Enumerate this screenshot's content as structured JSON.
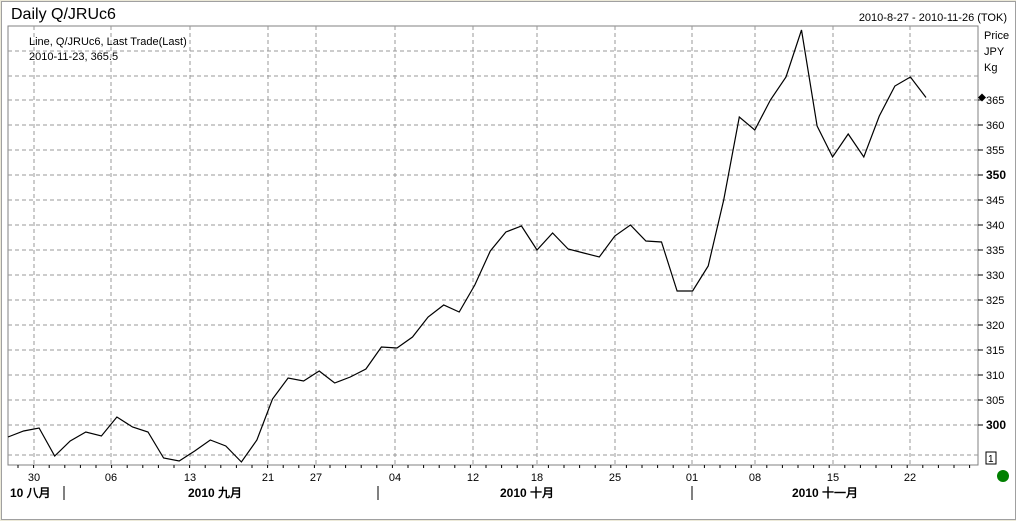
{
  "header": {
    "title": "Daily Q/JRUc6",
    "range": "2010-8-27 - 2010-11-26 (TOK)"
  },
  "legend": {
    "line1": "Line, Q/JRUc6, Last Trade(Last)",
    "line2": "2010-11-23, 365.5"
  },
  "axis_units": [
    "Price",
    "JPY",
    "Kg"
  ],
  "pane_index": "1",
  "status_color": "#008000",
  "chart_data": {
    "type": "line",
    "series": [
      {
        "values": [
          297.6,
          298.8,
          299.4,
          293.8,
          296.8,
          298.6,
          297.8,
          301.6,
          299.6,
          298.6,
          293.4,
          292.8,
          294.8,
          297,
          295.8,
          292.6,
          297,
          305.2,
          309.4,
          308.8,
          310.8,
          308.4,
          309.6,
          311.2,
          315.6,
          315.4,
          317.6,
          321.6,
          324,
          322.6,
          328,
          334.8,
          338.6,
          339.8,
          335,
          338.4,
          335.2,
          334.4,
          333.6,
          337.8,
          340,
          336.8,
          336.6,
          326.8,
          326.8,
          331.8,
          345,
          361.6,
          359,
          365,
          369.6,
          379,
          359.8,
          353.6,
          358.2,
          353.6,
          361.8,
          367.8,
          369.6,
          365.5
        ]
      }
    ],
    "ylim": [
      292,
      380
    ],
    "yticks": [
      300,
      305,
      310,
      315,
      320,
      325,
      330,
      335,
      340,
      345,
      350,
      355,
      360,
      365
    ],
    "xtick_labels": [
      "30",
      "06",
      "13",
      "21",
      "27",
      "04",
      "12",
      "18",
      "25",
      "01",
      "08",
      "15",
      "22"
    ],
    "month_labels": [
      "10 八月",
      "2010 九月",
      "2010 十月",
      "2010 十一月"
    ],
    "last_value": 365.5,
    "grid": true,
    "line_color": "#000000"
  }
}
